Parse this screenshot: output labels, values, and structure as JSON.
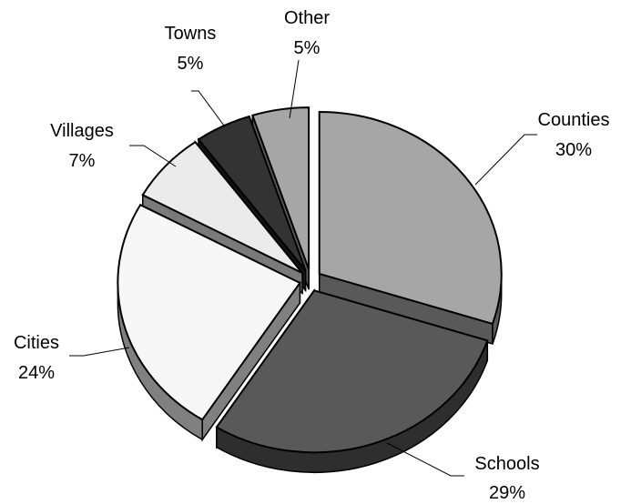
{
  "chart_data": {
    "type": "pie",
    "style": "3d-exploded",
    "legend": "none",
    "slices": [
      {
        "name": "Counties",
        "value": 30,
        "label": "30%",
        "color": "#a6a6a6",
        "side_color": "#595959"
      },
      {
        "name": "Schools",
        "value": 29,
        "label": "29%",
        "color": "#595959",
        "side_color": "#2e2e2e"
      },
      {
        "name": "Cities",
        "value": 24,
        "label": "24%",
        "color": "#f7f7f7",
        "side_color": "#808080"
      },
      {
        "name": "Villages",
        "value": 7,
        "label": "7%",
        "color": "#ebebeb",
        "side_color": "#7a7a7a"
      },
      {
        "name": "Towns",
        "value": 5,
        "label": "5%",
        "color": "#333333",
        "side_color": "#141414"
      },
      {
        "name": "Other",
        "value": 5,
        "label": "5%",
        "color": "#a6a6a6",
        "side_color": "#595959"
      }
    ]
  }
}
